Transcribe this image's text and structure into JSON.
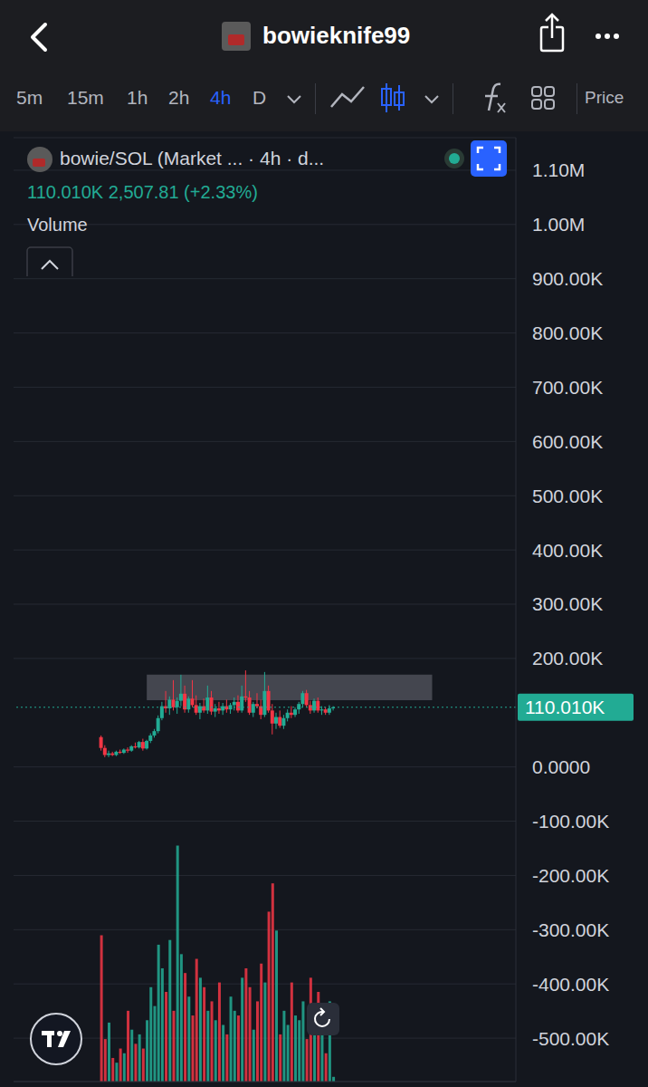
{
  "header": {
    "title": "bowieknife99"
  },
  "toolbar": {
    "timeframes": [
      "5m",
      "15m",
      "1h",
      "2h",
      "4h",
      "D"
    ],
    "active": "4h",
    "more": "Price"
  },
  "chart_data": {
    "type": "candlestick",
    "title": "bowie/SOL (Market ... · 4h · d...",
    "subtitle": "110.010K 2,507.81 (+2.33%)",
    "volume_label": "Volume",
    "x": [
      23,
      24,
      25,
      26,
      27,
      28,
      29,
      30,
      31,
      32,
      33,
      34,
      35,
      36,
      37,
      38,
      39,
      40,
      41,
      42,
      43,
      44,
      45,
      46,
      47,
      48,
      49,
      50,
      51,
      52,
      53,
      54,
      55,
      56,
      57,
      58,
      59,
      60,
      61,
      62,
      63,
      64,
      65,
      66,
      67,
      68,
      69,
      70,
      71,
      72,
      73,
      74,
      75,
      76,
      77,
      78,
      79,
      80,
      81,
      82,
      83,
      84
    ],
    "open": [
      55000,
      35000,
      22000,
      25000,
      22000,
      28000,
      26000,
      32000,
      30000,
      38000,
      36000,
      46000,
      34000,
      48000,
      58000,
      66000,
      90000,
      112000,
      108000,
      124000,
      110000,
      122000,
      135000,
      106000,
      126000,
      114000,
      100000,
      112000,
      104000,
      128000,
      102000,
      108000,
      104000,
      112000,
      106000,
      114000,
      120000,
      104000,
      130000,
      128000,
      100000,
      116000,
      112000,
      96000,
      140000,
      104000,
      80000,
      92000,
      76000,
      90000,
      100000,
      96000,
      106000,
      116000,
      136000,
      114000,
      104000,
      122000,
      104000,
      106000,
      100000,
      108000
    ],
    "high": [
      58000,
      40000,
      30000,
      28000,
      30000,
      32000,
      34000,
      36000,
      40000,
      45000,
      48000,
      52000,
      50000,
      62000,
      70000,
      95000,
      120000,
      140000,
      130000,
      160000,
      128000,
      170000,
      150000,
      130000,
      160000,
      132000,
      118000,
      126000,
      150000,
      140000,
      116000,
      120000,
      118000,
      124000,
      118000,
      128000,
      132000,
      150000,
      178000,
      140000,
      120000,
      136000,
      124000,
      175000,
      150000,
      116000,
      100000,
      104000,
      96000,
      106000,
      112000,
      110000,
      120000,
      140000,
      142000,
      122000,
      126000,
      128000,
      112000,
      110000,
      114000,
      112000
    ],
    "low": [
      30000,
      18000,
      18000,
      20000,
      20000,
      24000,
      24000,
      26000,
      28000,
      34000,
      34000,
      30000,
      32000,
      44000,
      54000,
      62000,
      86000,
      100000,
      96000,
      104000,
      98000,
      112000,
      100000,
      100000,
      110000,
      96000,
      88000,
      100000,
      98000,
      96000,
      92000,
      98000,
      96000,
      100000,
      98000,
      104000,
      100000,
      100000,
      120000,
      96000,
      92000,
      108000,
      88000,
      92000,
      100000,
      60000,
      70000,
      72000,
      70000,
      84000,
      90000,
      92000,
      98000,
      110000,
      110000,
      98000,
      100000,
      100000,
      96000,
      96000,
      96000,
      104000
    ],
    "close": [
      35000,
      22000,
      25000,
      22000,
      28000,
      26000,
      32000,
      30000,
      38000,
      36000,
      46000,
      34000,
      48000,
      58000,
      66000,
      90000,
      112000,
      108000,
      124000,
      110000,
      122000,
      135000,
      106000,
      126000,
      114000,
      100000,
      112000,
      104000,
      128000,
      102000,
      108000,
      104000,
      112000,
      106000,
      114000,
      120000,
      104000,
      130000,
      128000,
      100000,
      116000,
      112000,
      96000,
      140000,
      104000,
      80000,
      92000,
      76000,
      90000,
      100000,
      96000,
      106000,
      116000,
      136000,
      114000,
      104000,
      122000,
      104000,
      106000,
      100000,
      108000,
      110010
    ],
    "volume": [
      62,
      18,
      25,
      10,
      8,
      14,
      12,
      30,
      22,
      16,
      20,
      14,
      26,
      40,
      32,
      58,
      48,
      38,
      60,
      30,
      100,
      54,
      46,
      36,
      28,
      52,
      44,
      40,
      30,
      34,
      26,
      42,
      24,
      20,
      36,
      30,
      28,
      44,
      48,
      40,
      22,
      34,
      50,
      42,
      72,
      84,
      64,
      20,
      30,
      24,
      42,
      28,
      26,
      34,
      18,
      44,
      22,
      38,
      26,
      12,
      34,
      2
    ],
    "xlim": [
      0,
      132
    ],
    "xticks": [],
    "ylim": [
      -580000,
      1160000
    ],
    "yticks": [
      {
        "value": 1100000,
        "label": "1.10M"
      },
      {
        "value": 1000000,
        "label": "1.00M"
      },
      {
        "value": 900000,
        "label": "900.00K"
      },
      {
        "value": 800000,
        "label": "800.00K"
      },
      {
        "value": 700000,
        "label": "700.00K"
      },
      {
        "value": 600000,
        "label": "600.00K"
      },
      {
        "value": 500000,
        "label": "500.00K"
      },
      {
        "value": 400000,
        "label": "400.00K"
      },
      {
        "value": 300000,
        "label": "300.00K"
      },
      {
        "value": 200000,
        "label": "200.00K"
      },
      {
        "value": 0,
        "label": "0.0000"
      },
      {
        "value": -100000,
        "label": "-100.00K"
      },
      {
        "value": -200000,
        "label": "-200.00K"
      },
      {
        "value": -300000,
        "label": "-300.00K"
      },
      {
        "value": -400000,
        "label": "-400.00K"
      },
      {
        "value": -500000,
        "label": "-500.00K"
      }
    ],
    "y2lim": [
      0,
      400
    ],
    "last_price": {
      "value": 110010,
      "label": "110.010K"
    },
    "zone": {
      "x": [
        35,
        110
      ],
      "y": [
        123000,
        170000
      ]
    },
    "grid": true,
    "tick_labels": "y"
  }
}
